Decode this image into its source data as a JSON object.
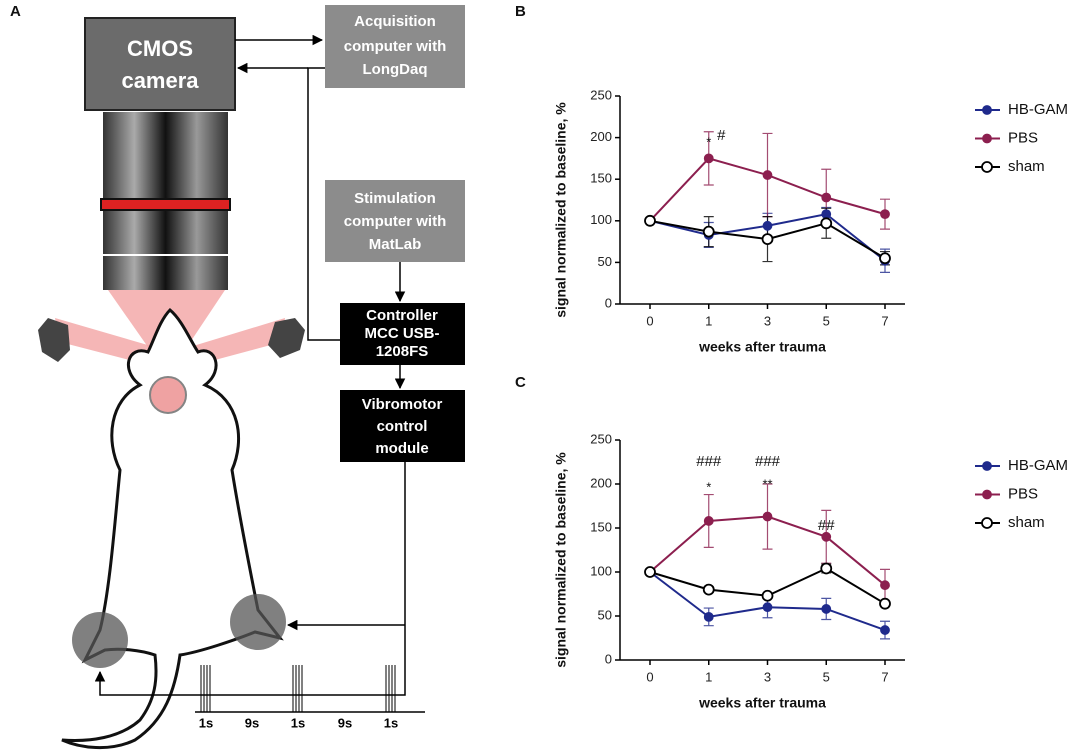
{
  "diagram": {
    "panel": "A",
    "camera": [
      "CMOS",
      "camera"
    ],
    "acquisition": [
      "Acquisition",
      "computer with",
      "LongDaq"
    ],
    "stimulation": [
      "Stimulation",
      "computer with",
      "MatLab"
    ],
    "controller": [
      "Controller",
      "MCC USB-",
      "1208FS"
    ],
    "vibromotor": [
      "Vibromotor",
      "control",
      "module"
    ],
    "timeline": [
      "1s",
      "9s",
      "1s",
      "9s",
      "1s"
    ]
  },
  "chart_data": [
    {
      "type": "line",
      "panel": "B",
      "xlabel": "weeks after trauma",
      "ylabel": "signal normalized to baseline, %",
      "categories": [
        "0",
        "1",
        "3",
        "5",
        "7"
      ],
      "ylim": [
        0,
        250
      ],
      "yticks": [
        0,
        50,
        100,
        150,
        200,
        250
      ],
      "series": [
        {
          "name": "HB-GAM",
          "color": "#1f2a8c",
          "values": [
            100,
            83,
            94,
            108,
            52
          ],
          "errors": [
            0,
            15,
            15,
            8,
            14
          ]
        },
        {
          "name": "PBS",
          "color": "#8c1f4f",
          "values": [
            100,
            175,
            155,
            128,
            108
          ],
          "errors": [
            0,
            32,
            50,
            34,
            18
          ]
        },
        {
          "name": "sham",
          "color": "#000000",
          "values": [
            100,
            87,
            78,
            97,
            55
          ],
          "errors": [
            0,
            18,
            27,
            18,
            8
          ]
        }
      ],
      "annotations": [
        "*",
        "#"
      ]
    },
    {
      "type": "line",
      "panel": "C",
      "xlabel": "weeks after trauma",
      "ylabel": "signal normalized to baseline, %",
      "categories": [
        "0",
        "1",
        "3",
        "5",
        "7"
      ],
      "ylim": [
        0,
        250
      ],
      "yticks": [
        0,
        50,
        100,
        150,
        200,
        250
      ],
      "series": [
        {
          "name": "HB-GAM",
          "color": "#1f2a8c",
          "values": [
            100,
            49,
            60,
            58,
            34
          ],
          "errors": [
            0,
            10,
            12,
            12,
            10
          ]
        },
        {
          "name": "PBS",
          "color": "#8c1f4f",
          "values": [
            100,
            158,
            163,
            140,
            85
          ],
          "errors": [
            0,
            30,
            37,
            30,
            18
          ]
        },
        {
          "name": "sham",
          "color": "#000000",
          "values": [
            100,
            80,
            73,
            104,
            64
          ],
          "errors": [
            0,
            3,
            3,
            5,
            3
          ]
        }
      ],
      "annotations": [
        "###",
        "*",
        "###",
        "**",
        "##"
      ]
    }
  ]
}
